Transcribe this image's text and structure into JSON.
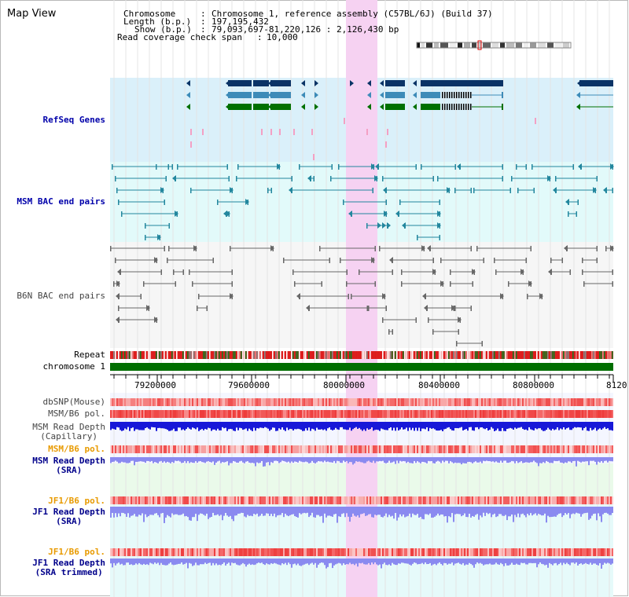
{
  "page": {
    "title": "Map View"
  },
  "info": {
    "chromosome_key": "Chromosome",
    "chromosome_val": "Chromosome 1, reference assembly (C57BL/6J) (Build 37)",
    "length_key": "Length (b.p.)",
    "length_val": "197,195,432",
    "show_key": "Show (b.p.)",
    "show_val": "79,093,697-81,220,126 : 2,126,430 bp",
    "coverage_key": "Read coverage check span",
    "coverage_val": "10,000"
  },
  "tracks": {
    "refseq": "RefSeq Genes",
    "msm_bac": "MSM BAC end pairs",
    "b6n_bac": "B6N BAC end pairs",
    "repeat": "Repeat",
    "chromosome": "chromosome 1",
    "dbsnp": "dbSNP(Mouse)",
    "msm_b6_pol": "MSM/B6 pol.",
    "msm_depth_cap_1": "MSM Read Depth",
    "msm_depth_cap_2": "(Capillary)",
    "msm_b6_pol_2": "MSM/B6 pol.",
    "msm_depth_sra_1": "MSM Read Depth",
    "msm_depth_sra_2": "(SRA)",
    "jf1_b6_pol": "JF1/B6 pol.",
    "jf1_depth_sra_1": "JF1 Read Depth",
    "jf1_depth_sra_2": "(SRA)",
    "jf1_b6_pol_2": "JF1/B6 pol.",
    "jf1_depth_trim_1": "JF1 Read Depth",
    "jf1_depth_trim_2": "(SRA trimmed)"
  },
  "axis": {
    "ticks": [
      "79200000",
      "79600000",
      "80000000",
      "80400000",
      "80800000",
      "8120"
    ]
  },
  "colors": {
    "refseq_bg": "#daf0fa",
    "msm_bg": "#e2fafa",
    "b6n_bg": "#f6f6f6",
    "highlight": "#f6d2f2",
    "gene_dark": "#0a3366",
    "gene_mid": "#3d8bb8",
    "gene_green": "#007000",
    "bac_teal": "#23879e",
    "bac_gray": "#686868",
    "chromosome": "#006e00",
    "depth_dark": "#1818d8",
    "depth_light": "#8a8af0",
    "pol_red": "#f05050"
  }
}
